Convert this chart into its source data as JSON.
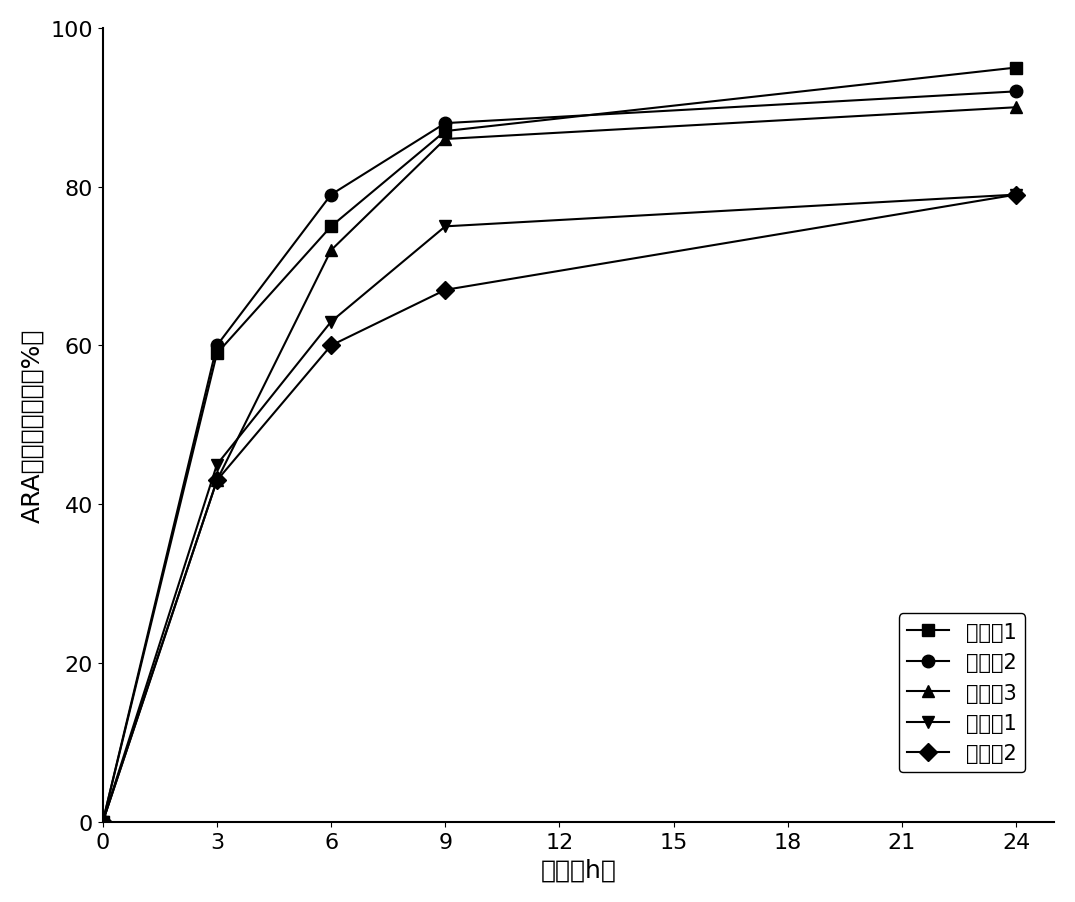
{
  "x": [
    0,
    3,
    6,
    9,
    24
  ],
  "series": [
    {
      "label": "组合物1",
      "y": [
        0,
        59,
        75,
        87,
        95
      ],
      "marker": "s",
      "color": "#000000"
    },
    {
      "label": "组合物2",
      "y": [
        0,
        60,
        79,
        88,
        92
      ],
      "marker": "o",
      "color": "#000000"
    },
    {
      "label": "组合物3",
      "y": [
        0,
        43,
        72,
        86,
        90
      ],
      "marker": "^",
      "color": "#000000"
    },
    {
      "label": "对照组1",
      "y": [
        0,
        45,
        63,
        75,
        79
      ],
      "marker": "v",
      "color": "#000000"
    },
    {
      "label": "对照组2",
      "y": [
        0,
        43,
        60,
        67,
        79
      ],
      "marker": "D",
      "color": "#000000"
    }
  ],
  "xlabel": "时间（h）",
  "ylabel": "ARA的淡巴回收率（%）",
  "xlim": [
    0,
    25
  ],
  "ylim": [
    0,
    100
  ],
  "xticks": [
    0,
    3,
    6,
    9,
    12,
    15,
    18,
    21,
    24
  ],
  "yticks": [
    0,
    20,
    40,
    60,
    80,
    100
  ],
  "line_width": 1.5,
  "marker_size": 9,
  "background_color": "#ffffff",
  "font_size_ticks": 16,
  "font_size_labels": 18,
  "font_size_legend": 15
}
